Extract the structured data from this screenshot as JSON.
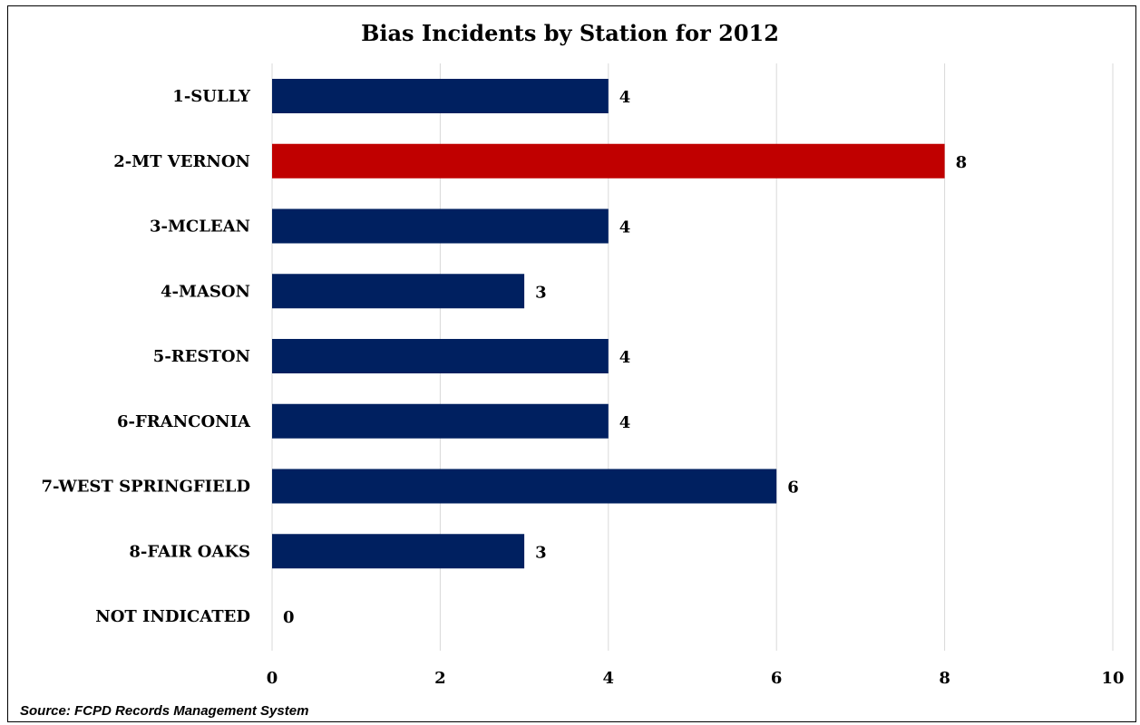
{
  "chart_data": {
    "type": "bar",
    "orientation": "horizontal",
    "title": "Bias Incidents by Station for 2012",
    "categories": [
      "1-SULLY",
      "2-MT VERNON",
      "3-MCLEAN",
      "4-MASON",
      "5-RESTON",
      "6-FRANCONIA",
      "7-WEST SPRINGFIELD",
      "8-FAIR OAKS",
      "NOT INDICATED"
    ],
    "values": [
      4,
      8,
      4,
      3,
      4,
      4,
      6,
      3,
      0
    ],
    "value_labels": [
      "4",
      "8",
      "4",
      "3",
      "4",
      "4",
      "6",
      "3",
      "0"
    ],
    "highlight_category": "2-MT VERNON",
    "xlim": [
      0,
      10
    ],
    "xticks": [
      0,
      2,
      4,
      6,
      8,
      10
    ],
    "xtick_labels": [
      "0",
      "2",
      "4",
      "6",
      "8",
      "10"
    ],
    "grid": "vertical",
    "legend": "none",
    "colors": {
      "bar": "#002060",
      "highlight": "#C00000",
      "grid": "#d9d9d9"
    }
  },
  "source": "Source: FCPD Records Management System"
}
